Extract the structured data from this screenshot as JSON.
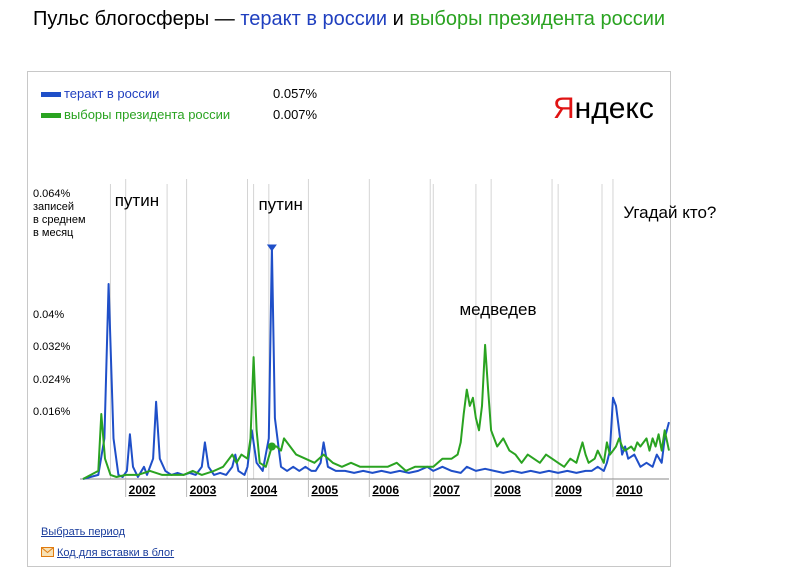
{
  "header": {
    "prefix": "Пульс блогосферы — ",
    "term1": "теракт в россии",
    "connector": " и ",
    "term2": "выборы президента россии"
  },
  "logo": {
    "first_letter": "Я",
    "rest": "ндекс",
    "accent": "#e01313"
  },
  "links": {
    "period": "Выбрать период",
    "embed": "Код для вставки в блог",
    "embed_icon": "envelope-icon"
  },
  "chart_data": {
    "type": "line",
    "ylabel": "0.064% записей в среднем в месяц",
    "ylabel_lines": [
      "0.064%",
      "записей",
      "в среднем",
      "в месяц"
    ],
    "y_ticks": [
      "0.04%",
      "0.032%",
      "0.024%",
      "0.016%"
    ],
    "y_tick_values": [
      0.04,
      0.032,
      0.024,
      0.016
    ],
    "ylim": [
      0,
      0.064
    ],
    "xlim": [
      2001.25,
      2010.92
    ],
    "x_ticks": [
      "2002",
      "2003",
      "2004",
      "2005",
      "2006",
      "2007",
      "2008",
      "2009",
      "2010"
    ],
    "x_tick_values": [
      2002,
      2003,
      2004,
      2005,
      2006,
      2007,
      2008,
      2009,
      2010
    ],
    "legend_placement": "top-left",
    "series": [
      {
        "name": "теракт в россии",
        "legend_value": "0.057%",
        "color": "#1f4fc8",
        "points": [
          [
            2001.3,
            0
          ],
          [
            2001.55,
            0.001
          ],
          [
            2001.65,
            0.01
          ],
          [
            2001.72,
            0.048
          ],
          [
            2001.8,
            0.01
          ],
          [
            2001.88,
            0.001
          ],
          [
            2001.95,
            0.0005
          ],
          [
            2002.02,
            0.002
          ],
          [
            2002.07,
            0.011
          ],
          [
            2002.12,
            0.003
          ],
          [
            2002.2,
            0.0005
          ],
          [
            2002.3,
            0.003
          ],
          [
            2002.35,
            0.001
          ],
          [
            2002.45,
            0.005
          ],
          [
            2002.5,
            0.019
          ],
          [
            2002.56,
            0.005
          ],
          [
            2002.65,
            0.002
          ],
          [
            2002.75,
            0.001
          ],
          [
            2002.85,
            0.0015
          ],
          [
            2002.95,
            0.001
          ],
          [
            2003.05,
            0.0015
          ],
          [
            2003.15,
            0.001
          ],
          [
            2003.25,
            0.003
          ],
          [
            2003.3,
            0.009
          ],
          [
            2003.36,
            0.003
          ],
          [
            2003.45,
            0.001
          ],
          [
            2003.55,
            0.0015
          ],
          [
            2003.65,
            0.001
          ],
          [
            2003.75,
            0.003
          ],
          [
            2003.8,
            0.006
          ],
          [
            2003.85,
            0.002
          ],
          [
            2003.95,
            0.001
          ],
          [
            2004.0,
            0.003
          ],
          [
            2004.07,
            0.012
          ],
          [
            2004.15,
            0.004
          ],
          [
            2004.25,
            0.002
          ],
          [
            2004.35,
            0.01
          ],
          [
            2004.4,
            0.057
          ],
          [
            2004.45,
            0.015
          ],
          [
            2004.55,
            0.003
          ],
          [
            2004.65,
            0.002
          ],
          [
            2004.75,
            0.003
          ],
          [
            2004.85,
            0.002
          ],
          [
            2004.95,
            0.003
          ],
          [
            2005.05,
            0.002
          ],
          [
            2005.12,
            0.002
          ],
          [
            2005.2,
            0.004
          ],
          [
            2005.25,
            0.009
          ],
          [
            2005.32,
            0.003
          ],
          [
            2005.45,
            0.002
          ],
          [
            2005.6,
            0.002
          ],
          [
            2005.75,
            0.0015
          ],
          [
            2005.9,
            0.002
          ],
          [
            2006.05,
            0.0015
          ],
          [
            2006.2,
            0.002
          ],
          [
            2006.35,
            0.0015
          ],
          [
            2006.5,
            0.002
          ],
          [
            2006.65,
            0.0015
          ],
          [
            2006.8,
            0.002
          ],
          [
            2006.95,
            0.003
          ],
          [
            2007.05,
            0.002
          ],
          [
            2007.2,
            0.003
          ],
          [
            2007.35,
            0.002
          ],
          [
            2007.5,
            0.0015
          ],
          [
            2007.6,
            0.003
          ],
          [
            2007.75,
            0.002
          ],
          [
            2007.9,
            0.0025
          ],
          [
            2008.05,
            0.002
          ],
          [
            2008.2,
            0.0015
          ],
          [
            2008.35,
            0.002
          ],
          [
            2008.5,
            0.0015
          ],
          [
            2008.65,
            0.002
          ],
          [
            2008.8,
            0.0015
          ],
          [
            2008.95,
            0.002
          ],
          [
            2009.1,
            0.0015
          ],
          [
            2009.25,
            0.002
          ],
          [
            2009.4,
            0.0015
          ],
          [
            2009.55,
            0.002
          ],
          [
            2009.65,
            0.002
          ],
          [
            2009.75,
            0.003
          ],
          [
            2009.85,
            0.002
          ],
          [
            2009.9,
            0.004
          ],
          [
            2009.95,
            0.007
          ],
          [
            2010.0,
            0.02
          ],
          [
            2010.05,
            0.018
          ],
          [
            2010.1,
            0.012
          ],
          [
            2010.15,
            0.006
          ],
          [
            2010.2,
            0.008
          ],
          [
            2010.25,
            0.005
          ],
          [
            2010.35,
            0.006
          ],
          [
            2010.45,
            0.003
          ],
          [
            2010.55,
            0.004
          ],
          [
            2010.65,
            0.003
          ],
          [
            2010.72,
            0.006
          ],
          [
            2010.8,
            0.004
          ],
          [
            2010.85,
            0.01
          ],
          [
            2010.92,
            0.014
          ]
        ]
      },
      {
        "name": "выборы президента россии",
        "legend_value": "0.007%",
        "color": "#2aa321",
        "points": [
          [
            2001.3,
            0
          ],
          [
            2001.55,
            0.002
          ],
          [
            2001.6,
            0.016
          ],
          [
            2001.66,
            0.005
          ],
          [
            2001.75,
            0.001
          ],
          [
            2001.85,
            0.0005
          ],
          [
            2002.0,
            0.001
          ],
          [
            2002.2,
            0.001
          ],
          [
            2002.4,
            0.002
          ],
          [
            2002.6,
            0.001
          ],
          [
            2002.8,
            0.001
          ],
          [
            2002.95,
            0.001
          ],
          [
            2003.1,
            0.002
          ],
          [
            2003.25,
            0.001
          ],
          [
            2003.45,
            0.002
          ],
          [
            2003.6,
            0.003
          ],
          [
            2003.75,
            0.006
          ],
          [
            2003.82,
            0.004
          ],
          [
            2003.9,
            0.006
          ],
          [
            2004.0,
            0.005
          ],
          [
            2004.05,
            0.01
          ],
          [
            2004.1,
            0.03
          ],
          [
            2004.15,
            0.012
          ],
          [
            2004.2,
            0.004
          ],
          [
            2004.3,
            0.003
          ],
          [
            2004.4,
            0.008
          ],
          [
            2004.48,
            0.008
          ],
          [
            2004.55,
            0.007
          ],
          [
            2004.6,
            0.01
          ],
          [
            2004.7,
            0.008
          ],
          [
            2004.8,
            0.006
          ],
          [
            2004.95,
            0.005
          ],
          [
            2005.1,
            0.004
          ],
          [
            2005.25,
            0.006
          ],
          [
            2005.4,
            0.004
          ],
          [
            2005.55,
            0.003
          ],
          [
            2005.7,
            0.004
          ],
          [
            2005.85,
            0.003
          ],
          [
            2006.0,
            0.003
          ],
          [
            2006.15,
            0.003
          ],
          [
            2006.3,
            0.003
          ],
          [
            2006.45,
            0.004
          ],
          [
            2006.6,
            0.002
          ],
          [
            2006.75,
            0.003
          ],
          [
            2006.9,
            0.003
          ],
          [
            2007.05,
            0.003
          ],
          [
            2007.2,
            0.005
          ],
          [
            2007.35,
            0.005
          ],
          [
            2007.45,
            0.006
          ],
          [
            2007.5,
            0.009
          ],
          [
            2007.55,
            0.016
          ],
          [
            2007.6,
            0.022
          ],
          [
            2007.65,
            0.018
          ],
          [
            2007.7,
            0.02
          ],
          [
            2007.75,
            0.015
          ],
          [
            2007.8,
            0.012
          ],
          [
            2007.85,
            0.018
          ],
          [
            2007.9,
            0.033
          ],
          [
            2007.95,
            0.022
          ],
          [
            2008.0,
            0.012
          ],
          [
            2008.1,
            0.008
          ],
          [
            2008.2,
            0.01
          ],
          [
            2008.3,
            0.007
          ],
          [
            2008.4,
            0.006
          ],
          [
            2008.5,
            0.004
          ],
          [
            2008.6,
            0.006
          ],
          [
            2008.7,
            0.005
          ],
          [
            2008.8,
            0.004
          ],
          [
            2008.9,
            0.006
          ],
          [
            2009.0,
            0.005
          ],
          [
            2009.1,
            0.004
          ],
          [
            2009.2,
            0.003
          ],
          [
            2009.3,
            0.005
          ],
          [
            2009.4,
            0.004
          ],
          [
            2009.5,
            0.009
          ],
          [
            2009.55,
            0.006
          ],
          [
            2009.6,
            0.004
          ],
          [
            2009.7,
            0.005
          ],
          [
            2009.75,
            0.007
          ],
          [
            2009.85,
            0.004
          ],
          [
            2009.9,
            0.009
          ],
          [
            2009.95,
            0.006
          ],
          [
            2010.0,
            0.007
          ],
          [
            2010.05,
            0.008
          ],
          [
            2010.1,
            0.01
          ],
          [
            2010.15,
            0.008
          ],
          [
            2010.2,
            0.007
          ],
          [
            2010.3,
            0.008
          ],
          [
            2010.35,
            0.007
          ],
          [
            2010.4,
            0.009
          ],
          [
            2010.45,
            0.008
          ],
          [
            2010.55,
            0.01
          ],
          [
            2010.6,
            0.007
          ],
          [
            2010.65,
            0.01
          ],
          [
            2010.7,
            0.008
          ],
          [
            2010.75,
            0.011
          ],
          [
            2010.8,
            0.007
          ],
          [
            2010.85,
            0.012
          ],
          [
            2010.92,
            0.007
          ]
        ]
      }
    ],
    "event_markers": [
      2001.75,
      2002.68,
      2004.1,
      2004.35,
      2007.05,
      2007.75,
      2009.1,
      2009.82
    ],
    "annotations": [
      {
        "text": "путин",
        "x": 2001.82,
        "y": 0.0685
      },
      {
        "text": "путин",
        "x": 2004.18,
        "y": 0.0675
      },
      {
        "text": "медведев",
        "x": 2007.48,
        "y": 0.0415
      },
      {
        "text": "Угадай кто?",
        "x": 2010.17,
        "y": 0.0655
      }
    ]
  }
}
